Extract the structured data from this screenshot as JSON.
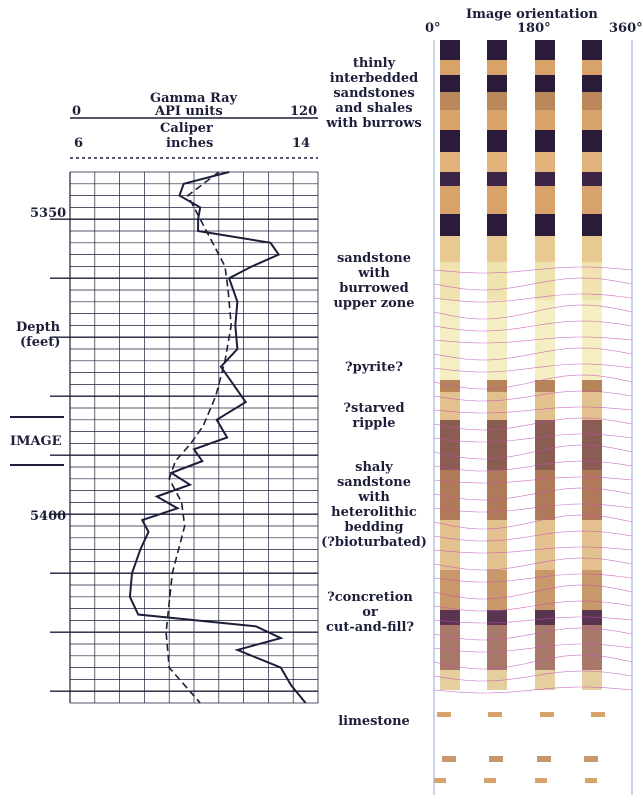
{
  "header": {
    "gamma_title": "Gamma Ray",
    "gamma_units": "API units",
    "gamma_min": "0",
    "gamma_max": "120",
    "caliper_title": "Caliper",
    "caliper_units": "inches",
    "caliper_min": "6",
    "caliper_max": "14"
  },
  "depth_axis": {
    "label_line1": "Depth",
    "label_line2": "(feet)",
    "tick_5350": "5350",
    "tick_5400": "5400",
    "image_marker": "IMAGE"
  },
  "image_header": {
    "title": "Image orientation",
    "deg_0": "0°",
    "deg_180": "180°",
    "deg_360": "360°"
  },
  "annotations": [
    {
      "lines": [
        "thinly",
        "interbedded",
        "sandstones",
        "and shales",
        "with burrows"
      ]
    },
    {
      "lines": [
        "sandstone",
        "with",
        "burrowed",
        "upper zone"
      ]
    },
    {
      "lines": [
        "?pyrite?"
      ]
    },
    {
      "lines": [
        "?starved",
        "ripple"
      ]
    },
    {
      "lines": [
        "shaly",
        "sandstone",
        "with",
        "heterolithic",
        "bedding",
        "(?bioturbated)"
      ]
    },
    {
      "lines": [
        "?concretion",
        "or",
        "cut-and-fill?"
      ]
    },
    {
      "lines": [
        "limestone"
      ]
    }
  ],
  "colors": {
    "ink": "#1d1f3a",
    "image_light": "#f4eec2",
    "image_mid": "#d8a26a",
    "image_dark": "#2a1b3a",
    "bedding_line": "#c24fb8"
  },
  "curve_data": {
    "gamma_ray": {
      "depth_ft": [
        5342,
        5344,
        5346,
        5348,
        5350,
        5352,
        5354,
        5356,
        5358,
        5360,
        5364,
        5368,
        5372,
        5375,
        5378,
        5381,
        5384,
        5387,
        5389,
        5391,
        5393,
        5395,
        5397,
        5399,
        5401,
        5403,
        5406,
        5410,
        5414,
        5417,
        5419,
        5421,
        5423,
        5426,
        5429,
        5432
      ],
      "api": [
        77,
        55,
        53,
        63,
        62,
        62,
        97,
        101,
        88,
        77,
        81,
        80,
        81,
        73,
        79,
        85,
        71,
        76,
        60,
        64,
        49,
        58,
        42,
        52,
        35,
        38,
        34,
        30,
        29,
        33,
        90,
        102,
        81,
        102,
        107,
        114
      ]
    },
    "caliper": {
      "depth_ft": [
        5342,
        5346,
        5350,
        5354,
        5358,
        5362,
        5368,
        5374,
        5380,
        5385,
        5388,
        5391,
        5394,
        5398,
        5402,
        5410,
        5420,
        5426,
        5432
      ],
      "inches": [
        10.8,
        9.8,
        10.2,
        10.6,
        11.0,
        11.1,
        11.2,
        11.0,
        10.7,
        10.3,
        9.9,
        9.4,
        9.2,
        9.6,
        9.7,
        9.3,
        9.1,
        9.2,
        10.2
      ]
    }
  }
}
